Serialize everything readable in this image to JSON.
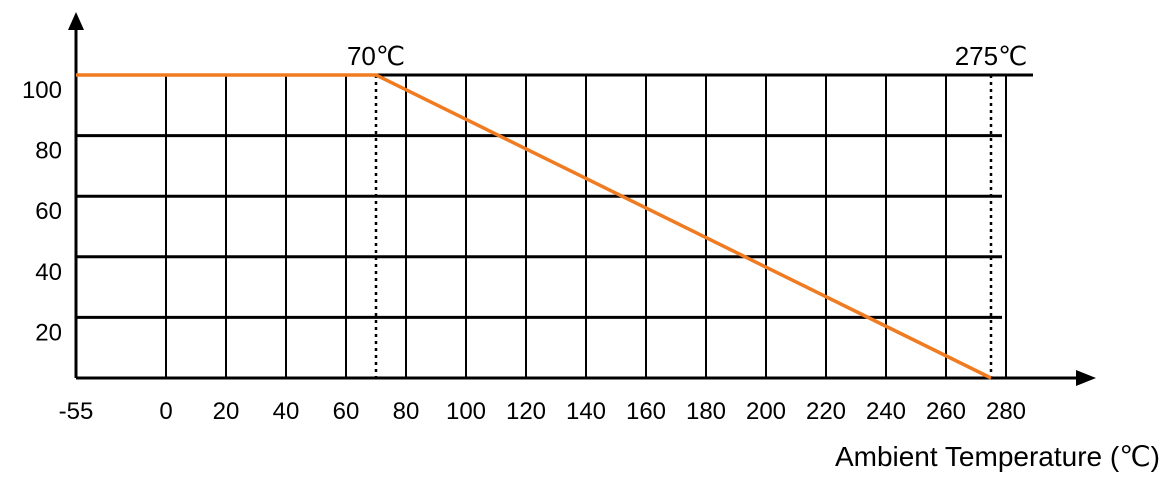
{
  "chart_data": {
    "type": "line",
    "title": "",
    "xlabel": "Ambient Temperature (℃)",
    "ylabel": "",
    "x_ticks": [
      "-55",
      "0",
      "20",
      "40",
      "60",
      "80",
      "100",
      "120",
      "140",
      "160",
      "180",
      "200",
      "220",
      "240",
      "260",
      "280"
    ],
    "y_ticks": [
      "20",
      "40",
      "60",
      "80",
      "100"
    ],
    "ylim": [
      0,
      100
    ],
    "grid": true,
    "series": [
      {
        "color": "#f07b20",
        "points": [
          {
            "x": -55,
            "y": 100
          },
          {
            "x": 70,
            "y": 100
          },
          {
            "x": 275,
            "y": 0
          }
        ]
      }
    ],
    "annotations": [
      {
        "label": "70℃",
        "x": 70
      },
      {
        "label": "275℃",
        "x": 275
      }
    ]
  }
}
